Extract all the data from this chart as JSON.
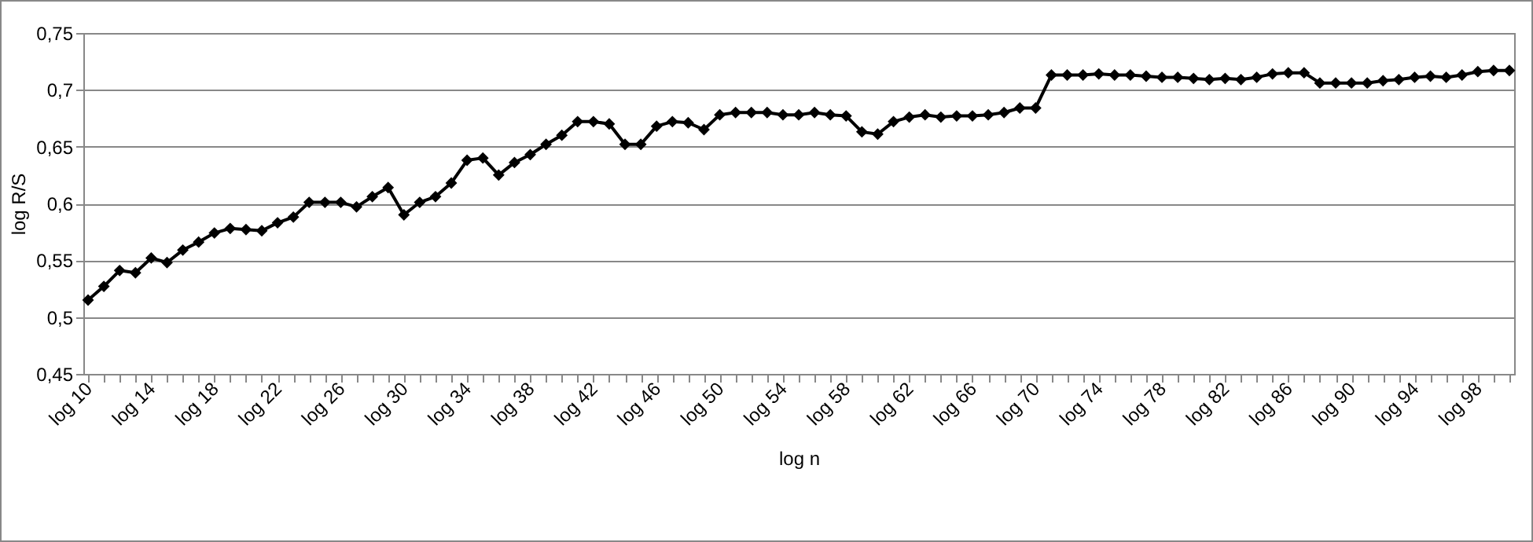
{
  "chart_data": {
    "type": "line",
    "xlabel": "log n",
    "ylabel": "log R/S",
    "categories": [
      "log 10",
      null,
      null,
      null,
      "log 14",
      null,
      null,
      null,
      "log 18",
      null,
      null,
      null,
      "log 22",
      null,
      null,
      null,
      "log 26",
      null,
      null,
      null,
      "log 30",
      null,
      null,
      null,
      "log 34",
      null,
      null,
      null,
      "log 38",
      null,
      null,
      null,
      "log 42",
      null,
      null,
      null,
      "log 46",
      null,
      null,
      null,
      "log 50",
      null,
      null,
      null,
      "log 54",
      null,
      null,
      null,
      "log 58",
      null,
      null,
      null,
      "log 62",
      null,
      null,
      null,
      "log 66",
      null,
      null,
      null,
      "log 70",
      null,
      null,
      null,
      "log 74",
      null,
      null,
      null,
      "log 78",
      null,
      null,
      null,
      "log 82",
      null,
      null,
      null,
      "log 86",
      null,
      null,
      null,
      "log 90",
      null,
      null,
      null,
      "log 94",
      null,
      null,
      null,
      "log 98",
      null,
      null
    ],
    "series": [
      {
        "color": "#000000",
        "values": [
          0.515,
          0.527,
          0.541,
          0.539,
          0.552,
          0.548,
          0.559,
          0.566,
          0.574,
          0.578,
          0.577,
          0.576,
          0.583,
          0.588,
          0.601,
          0.601,
          0.601,
          0.597,
          0.606,
          0.614,
          0.59,
          0.601,
          0.606,
          0.618,
          0.638,
          0.64,
          0.625,
          0.636,
          0.643,
          0.652,
          0.66,
          0.672,
          0.672,
          0.67,
          0.652,
          0.652,
          0.668,
          0.672,
          0.671,
          0.665,
          0.678,
          0.68,
          0.68,
          0.68,
          0.678,
          0.678,
          0.68,
          0.678,
          0.677,
          0.663,
          0.661,
          0.672,
          0.676,
          0.678,
          0.676,
          0.677,
          0.677,
          0.678,
          0.68,
          0.684,
          0.684,
          0.713,
          0.713,
          0.713,
          0.714,
          0.713,
          0.713,
          0.712,
          0.711,
          0.711,
          0.71,
          0.709,
          0.71,
          0.709,
          0.711,
          0.714,
          0.715,
          0.715,
          0.706,
          0.706,
          0.706,
          0.706,
          0.708,
          0.709,
          0.711,
          0.712,
          0.711,
          0.713,
          0.716,
          0.717,
          0.717
        ]
      }
    ],
    "ylim": [
      0.45,
      0.75
    ],
    "yticks": [
      {
        "value": 0.45,
        "label": "0,45"
      },
      {
        "value": 0.5,
        "label": "0,5"
      },
      {
        "value": 0.55,
        "label": "0,55"
      },
      {
        "value": 0.6,
        "label": "0,6"
      },
      {
        "value": 0.65,
        "label": "0,65"
      },
      {
        "value": 0.7,
        "label": "0,7"
      },
      {
        "value": 0.75,
        "label": "0,75"
      }
    ],
    "grid": "y",
    "marker": "diamond",
    "line_style": "solid"
  }
}
